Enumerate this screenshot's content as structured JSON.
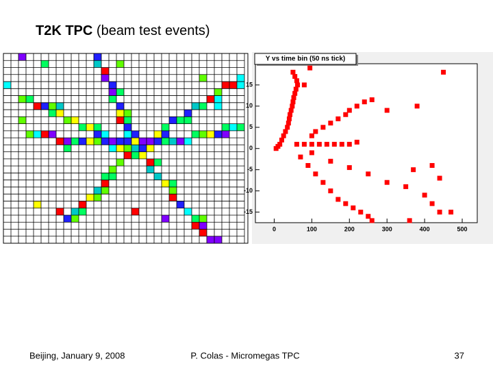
{
  "title": {
    "bold": "T2K TPC",
    "rest": "(beam test events)"
  },
  "plot": {
    "type": "scatter",
    "title": "Y vs time bin (50 ns tick)",
    "color": "#ff0000",
    "xlim": [
      -50,
      540
    ],
    "ylim": [
      -17.5,
      20
    ],
    "xticks": [
      0,
      100,
      200,
      300,
      400,
      500
    ],
    "yticks": [
      15,
      10,
      5,
      0,
      -5,
      -10,
      -15
    ],
    "x": [
      50,
      55,
      60,
      62,
      58,
      55,
      52,
      50,
      48,
      45,
      42,
      40,
      38,
      35,
      30,
      25,
      20,
      15,
      10,
      5,
      80,
      95,
      60,
      80,
      100,
      120,
      140,
      160,
      180,
      200,
      220,
      100,
      110,
      130,
      150,
      170,
      190,
      200,
      220,
      240,
      260,
      70,
      90,
      110,
      130,
      150,
      170,
      190,
      210,
      230,
      250,
      260,
      100,
      150,
      200,
      250,
      300,
      350,
      400,
      420,
      440,
      450,
      380,
      300,
      370,
      420,
      360,
      470,
      440
    ],
    "y": [
      18,
      17,
      16,
      15,
      14,
      13,
      12,
      11,
      10,
      9,
      8,
      7,
      6,
      5,
      4,
      3,
      2,
      1,
      0.5,
      0,
      15,
      19,
      1,
      1,
      1,
      1,
      1,
      1,
      1,
      1,
      1.5,
      3,
      4,
      5,
      6,
      7,
      8,
      9,
      10,
      11,
      11.5,
      -2,
      -4,
      -6,
      -8,
      -10,
      -12,
      -13,
      -14,
      -15,
      -16,
      -17,
      -1,
      -3,
      -4.5,
      -6,
      -8,
      -9,
      -11,
      -13,
      -15,
      18,
      10,
      9,
      -5,
      -4,
      -17,
      -15,
      -7
    ]
  },
  "footer": {
    "left": "Beijing, January 9, 2008",
    "center": "P. Colas - Micromegas TPC",
    "right": "37"
  }
}
